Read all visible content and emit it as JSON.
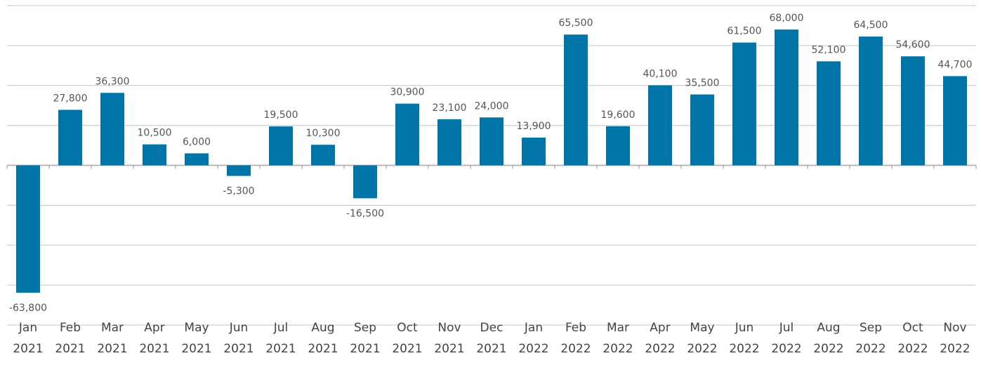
{
  "chart_data": {
    "type": "bar",
    "categories": [
      "Jan 2021",
      "Feb 2021",
      "Mar 2021",
      "Apr 2021",
      "May 2021",
      "Jun 2021",
      "Jul 2021",
      "Aug 2021",
      "Sep 2021",
      "Oct 2021",
      "Nov 2021",
      "Dec 2021",
      "Jan 2022",
      "Feb 2022",
      "Mar 2022",
      "Apr 2022",
      "May 2022",
      "Jun 2022",
      "Jul 2022",
      "Aug 2022",
      "Sep 2022",
      "Oct 2022",
      "Nov 2022"
    ],
    "values": [
      -63800,
      27800,
      36300,
      10500,
      6000,
      -5300,
      19500,
      10300,
      -16500,
      30900,
      23100,
      24000,
      13900,
      65500,
      19600,
      40100,
      35500,
      61500,
      68000,
      52100,
      64500,
      54600,
      44700
    ],
    "value_labels": [
      "-63,800",
      "27,800",
      "36,300",
      "10,500",
      "6,000",
      "-5,300",
      "19,500",
      "10,300",
      "-16,500",
      "30,900",
      "23,100",
      "24,000",
      "13,900",
      "65,500",
      "19,600",
      "40,100",
      "35,500",
      "61,500",
      "68,000",
      "52,100",
      "64,500",
      "54,600",
      "44,700"
    ],
    "color": "#0174a8",
    "ylim": [
      -80000,
      80000
    ],
    "yticks": [
      -80000,
      -60000,
      -40000,
      -20000,
      0,
      20000,
      40000,
      60000,
      80000
    ],
    "grid": true
  }
}
